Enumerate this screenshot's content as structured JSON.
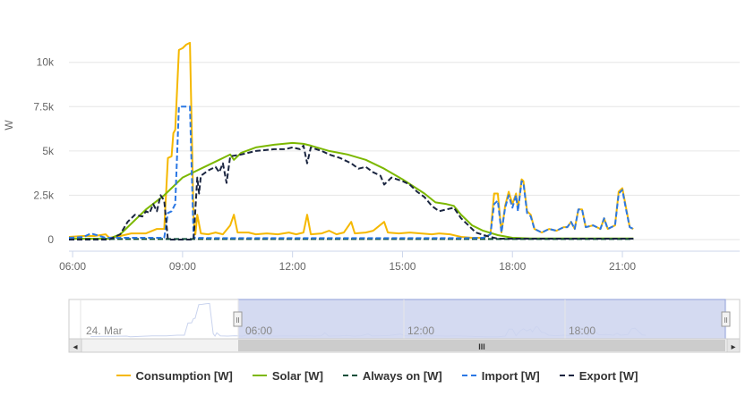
{
  "chart_data": {
    "type": "line",
    "ylabel": "W",
    "y_ticks": [
      "0",
      "2.5k",
      "5k",
      "7.5k",
      "10k"
    ],
    "y_tick_values": [
      0,
      2500,
      5000,
      7500,
      10000
    ],
    "ylim": [
      0,
      11500
    ],
    "x_ticks": [
      "06:00",
      "09:00",
      "12:00",
      "15:00",
      "18:00",
      "21:00"
    ],
    "x_tick_values": [
      6,
      9,
      12,
      15,
      18,
      21
    ],
    "xlim": [
      5.9,
      24.2
    ],
    "grid": "horizontal",
    "legend_position": "bottom",
    "series": [
      {
        "name": "Consumption [W]",
        "color": "#f5b800",
        "dash": "solid",
        "points": [
          [
            5.9,
            150
          ],
          [
            6.3,
            200
          ],
          [
            6.6,
            200
          ],
          [
            6.9,
            300
          ],
          [
            7.0,
            100
          ],
          [
            7.3,
            200
          ],
          [
            7.6,
            350
          ],
          [
            8.0,
            350
          ],
          [
            8.3,
            600
          ],
          [
            8.5,
            600
          ],
          [
            8.6,
            4600
          ],
          [
            8.7,
            4700
          ],
          [
            8.75,
            6000
          ],
          [
            8.8,
            6200
          ],
          [
            8.9,
            10700
          ],
          [
            9.0,
            10800
          ],
          [
            9.1,
            11000
          ],
          [
            9.2,
            11100
          ],
          [
            9.3,
            1100
          ],
          [
            9.35,
            300
          ],
          [
            9.4,
            1400
          ],
          [
            9.5,
            350
          ],
          [
            9.7,
            300
          ],
          [
            9.9,
            400
          ],
          [
            10.1,
            300
          ],
          [
            10.3,
            800
          ],
          [
            10.4,
            1400
          ],
          [
            10.5,
            400
          ],
          [
            10.8,
            400
          ],
          [
            11.0,
            300
          ],
          [
            11.3,
            350
          ],
          [
            11.6,
            300
          ],
          [
            11.9,
            400
          ],
          [
            12.1,
            300
          ],
          [
            12.3,
            400
          ],
          [
            12.4,
            1400
          ],
          [
            12.5,
            300
          ],
          [
            12.8,
            350
          ],
          [
            13.0,
            500
          ],
          [
            13.2,
            300
          ],
          [
            13.4,
            400
          ],
          [
            13.6,
            1000
          ],
          [
            13.7,
            350
          ],
          [
            14.0,
            400
          ],
          [
            14.2,
            500
          ],
          [
            14.5,
            1000
          ],
          [
            14.6,
            400
          ],
          [
            14.9,
            350
          ],
          [
            15.2,
            400
          ],
          [
            15.5,
            350
          ],
          [
            15.8,
            300
          ],
          [
            16.0,
            350
          ],
          [
            16.3,
            300
          ],
          [
            16.6,
            150
          ],
          [
            16.9,
            100
          ],
          [
            17.2,
            100
          ],
          [
            17.4,
            300
          ],
          [
            17.5,
            2600
          ],
          [
            17.6,
            2600
          ],
          [
            17.7,
            400
          ],
          [
            17.8,
            1900
          ],
          [
            17.9,
            2700
          ],
          [
            18.0,
            2000
          ],
          [
            18.1,
            2600
          ],
          [
            18.15,
            1700
          ],
          [
            18.25,
            3400
          ],
          [
            18.3,
            3300
          ],
          [
            18.4,
            1600
          ],
          [
            18.5,
            1400
          ],
          [
            18.6,
            600
          ],
          [
            18.8,
            400
          ],
          [
            19.0,
            600
          ],
          [
            19.2,
            500
          ],
          [
            19.4,
            700
          ],
          [
            19.5,
            700
          ],
          [
            19.6,
            1000
          ],
          [
            19.7,
            600
          ],
          [
            19.8,
            1700
          ],
          [
            19.9,
            1700
          ],
          [
            20.0,
            700
          ],
          [
            20.2,
            800
          ],
          [
            20.4,
            600
          ],
          [
            20.5,
            1200
          ],
          [
            20.6,
            600
          ],
          [
            20.8,
            800
          ],
          [
            20.9,
            2700
          ],
          [
            21.0,
            2900
          ],
          [
            21.1,
            1800
          ],
          [
            21.2,
            700
          ],
          [
            21.3,
            600
          ]
        ]
      },
      {
        "name": "Solar [W]",
        "color": "#7cb800",
        "dash": "solid",
        "points": [
          [
            5.9,
            50
          ],
          [
            7.0,
            50
          ],
          [
            7.3,
            300
          ],
          [
            7.5,
            700
          ],
          [
            8.0,
            1700
          ],
          [
            8.5,
            2500
          ],
          [
            9.0,
            3500
          ],
          [
            9.5,
            4000
          ],
          [
            10.0,
            4500
          ],
          [
            10.3,
            4800
          ],
          [
            10.4,
            4500
          ],
          [
            10.6,
            4900
          ],
          [
            11.0,
            5200
          ],
          [
            11.5,
            5350
          ],
          [
            12.0,
            5450
          ],
          [
            12.3,
            5400
          ],
          [
            12.5,
            5300
          ],
          [
            13.0,
            5000
          ],
          [
            13.5,
            4800
          ],
          [
            14.0,
            4500
          ],
          [
            14.5,
            4000
          ],
          [
            15.0,
            3400
          ],
          [
            15.3,
            3000
          ],
          [
            15.6,
            2600
          ],
          [
            15.9,
            2100
          ],
          [
            16.2,
            2000
          ],
          [
            16.4,
            1900
          ],
          [
            16.6,
            1400
          ],
          [
            16.9,
            800
          ],
          [
            17.2,
            500
          ],
          [
            17.6,
            250
          ],
          [
            18.0,
            100
          ],
          [
            18.5,
            60
          ],
          [
            21.3,
            60
          ]
        ]
      },
      {
        "name": "Always on [W]",
        "color": "#0f4f3a",
        "dash": "dashed",
        "points": [
          [
            5.9,
            30
          ],
          [
            21.3,
            30
          ]
        ]
      },
      {
        "name": "Import [W]",
        "color": "#2b78e4",
        "dash": "dashed",
        "points": [
          [
            5.9,
            100
          ],
          [
            6.3,
            150
          ],
          [
            6.5,
            350
          ],
          [
            6.9,
            100
          ],
          [
            7.5,
            100
          ],
          [
            8.5,
            100
          ],
          [
            8.6,
            1500
          ],
          [
            8.7,
            1600
          ],
          [
            8.8,
            2000
          ],
          [
            8.9,
            7500
          ],
          [
            9.0,
            7500
          ],
          [
            9.1,
            7500
          ],
          [
            9.2,
            7500
          ],
          [
            9.3,
            100
          ],
          [
            10.0,
            80
          ],
          [
            12.0,
            80
          ],
          [
            15.0,
            80
          ],
          [
            16.6,
            80
          ],
          [
            17.2,
            100
          ],
          [
            17.4,
            300
          ],
          [
            17.5,
            2000
          ],
          [
            17.6,
            2200
          ],
          [
            17.7,
            400
          ],
          [
            17.8,
            1800
          ],
          [
            17.9,
            2500
          ],
          [
            18.0,
            1800
          ],
          [
            18.1,
            2500
          ],
          [
            18.15,
            1600
          ],
          [
            18.25,
            3300
          ],
          [
            18.3,
            3200
          ],
          [
            18.4,
            1500
          ],
          [
            18.5,
            1300
          ],
          [
            18.6,
            600
          ],
          [
            18.8,
            400
          ],
          [
            19.0,
            600
          ],
          [
            19.2,
            500
          ],
          [
            19.4,
            700
          ],
          [
            19.5,
            700
          ],
          [
            19.6,
            1000
          ],
          [
            19.7,
            600
          ],
          [
            19.8,
            1700
          ],
          [
            19.9,
            1700
          ],
          [
            20.0,
            700
          ],
          [
            20.2,
            800
          ],
          [
            20.4,
            600
          ],
          [
            20.5,
            1200
          ],
          [
            20.6,
            600
          ],
          [
            20.8,
            800
          ],
          [
            20.9,
            2600
          ],
          [
            21.0,
            2800
          ],
          [
            21.1,
            1700
          ],
          [
            21.2,
            700
          ],
          [
            21.3,
            600
          ]
        ]
      },
      {
        "name": "Export [W]",
        "color": "#1a2540",
        "dash": "dashed",
        "points": [
          [
            5.9,
            0
          ],
          [
            7.0,
            0
          ],
          [
            7.3,
            300
          ],
          [
            7.5,
            1000
          ],
          [
            7.7,
            1400
          ],
          [
            7.9,
            1300
          ],
          [
            8.0,
            1600
          ],
          [
            8.1,
            1500
          ],
          [
            8.2,
            2000
          ],
          [
            8.3,
            1600
          ],
          [
            8.4,
            2500
          ],
          [
            8.5,
            2200
          ],
          [
            8.6,
            0
          ],
          [
            9.3,
            0
          ],
          [
            9.4,
            3500
          ],
          [
            9.45,
            2600
          ],
          [
            9.5,
            3600
          ],
          [
            9.7,
            3900
          ],
          [
            9.9,
            4100
          ],
          [
            10.0,
            3800
          ],
          [
            10.1,
            4300
          ],
          [
            10.2,
            3200
          ],
          [
            10.3,
            4700
          ],
          [
            10.6,
            4800
          ],
          [
            11.0,
            5000
          ],
          [
            11.5,
            5100
          ],
          [
            11.8,
            5100
          ],
          [
            12.0,
            5200
          ],
          [
            12.2,
            5100
          ],
          [
            12.3,
            5300
          ],
          [
            12.4,
            4300
          ],
          [
            12.5,
            5200
          ],
          [
            12.8,
            5000
          ],
          [
            13.0,
            4800
          ],
          [
            13.3,
            4600
          ],
          [
            13.6,
            4300
          ],
          [
            13.8,
            4000
          ],
          [
            14.0,
            4100
          ],
          [
            14.2,
            3800
          ],
          [
            14.4,
            3600
          ],
          [
            14.5,
            3100
          ],
          [
            14.7,
            3500
          ],
          [
            15.0,
            3300
          ],
          [
            15.2,
            3100
          ],
          [
            15.4,
            2700
          ],
          [
            15.6,
            2400
          ],
          [
            15.8,
            1900
          ],
          [
            16.0,
            1600
          ],
          [
            16.2,
            1700
          ],
          [
            16.4,
            1800
          ],
          [
            16.6,
            1200
          ],
          [
            16.8,
            800
          ],
          [
            17.0,
            400
          ],
          [
            17.3,
            200
          ],
          [
            17.6,
            50
          ],
          [
            21.3,
            50
          ]
        ]
      }
    ]
  },
  "navigator": {
    "date_label": "24. Mar",
    "time_labels": [
      "06:00",
      "12:00",
      "18:00"
    ],
    "scroll_left_arrow": "◂",
    "scroll_right_arrow": "▸",
    "scroll_grip": "III",
    "handle_grip": "II"
  },
  "legend": [
    {
      "label": "Consumption [W]",
      "color": "#f5b800",
      "dashed": false
    },
    {
      "label": "Solar [W]",
      "color": "#7cb800",
      "dashed": false
    },
    {
      "label": "Always on [W]",
      "color": "#0f4f3a",
      "dashed": true
    },
    {
      "label": "Import [W]",
      "color": "#2b78e4",
      "dashed": true
    },
    {
      "label": "Export [W]",
      "color": "#1a2540",
      "dashed": true
    }
  ],
  "colors": {
    "grid": "#e6e6e6",
    "axis_line": "#ccd6eb",
    "tick_text": "#666666",
    "navigator_fill": "#ccd3ef",
    "navigator_border": "#cccccc",
    "scrollbar_bg": "#f2f2f2",
    "scrollbar_thumb": "#cccccc"
  }
}
